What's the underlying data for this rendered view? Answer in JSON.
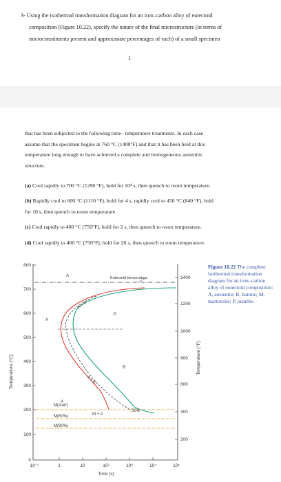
{
  "question": {
    "number": "3-",
    "line1": "Using the isothermal transformation diagram for an iron–carbon alloy of eutectoid",
    "line2": "composition (Figure 10.22), specify the nature of the final microstructure (in terms of",
    "line3": "microconstituents present and approximate percentages of each) of a small specimen"
  },
  "page_number": "1",
  "continuation": {
    "line1": "that has been subjected to the following time– temperature treatments. In each case",
    "line2": "assume that the specimen begins at 760 °C (1400°F) and that it has been held at this",
    "line3": "temperature long enough to have achieved a complete and homogeneous austenitic",
    "line4": "structure."
  },
  "parts": {
    "a": {
      "label": "(a)",
      "text": "Cool rapidly to 700 °C (1290 °F), hold for 10⁴ s, then quench to room temperature."
    },
    "b": {
      "label": "(b)",
      "line1": "Rapidly cool to 600 °C (1110 °F), hold for 4 s, rapidly cool to 450 °C (840 °F), hold",
      "line2": "for 10 s, then quench to room temperature."
    },
    "c": {
      "label": "(c)",
      "text": "Cool rapidly to 400 °C (750°F), hold for 2 s, then quench to room temperature."
    },
    "d": {
      "label": "(d)",
      "text": "Cool rapidly to 400 °C (750°F), hold for 20 s, then quench to room temperature."
    }
  },
  "caption": {
    "label": "Figure 10.22",
    "text": "The complete isothermal transformation diagram for an iron–carbon alloy of eutectoid composition: A, austenite; B, bainite; M, martensite; P, pearlite."
  },
  "diagram": {
    "ylabel_left": "Temperature (°C)",
    "ylabel_right": "Temperature (°F)",
    "xlabel": "Time (s)",
    "left_ticks": [
      "0",
      "100",
      "200",
      "300",
      "400",
      "500",
      "600",
      "700",
      "800"
    ],
    "right_ticks": [
      "200",
      "400",
      "600",
      "800",
      "1000",
      "1200",
      "1400"
    ],
    "x_ticks": [
      "10⁻¹",
      "1",
      "10",
      "10²",
      "10³",
      "10⁴",
      "10⁵"
    ],
    "eutectoid_label": "Eutectoid temperature",
    "labels": {
      "A_top": "A",
      "A_left": "A",
      "A_lower": "A",
      "P": "P",
      "B": "B",
      "A_plus_P": "A + P",
      "A_plus_B": "A + B",
      "M_start": "M(start)",
      "M_50": "M(50%)",
      "M_90": "M(90%)",
      "M_plus_A": "M + A",
      "fifty": "50%"
    },
    "colors": {
      "start_curve": "#d93a30",
      "finish_curve": "#18a07a",
      "fifty_curve": "#333333",
      "eutectoid_line": "#333333",
      "martensite_lines": "#e8a030"
    }
  }
}
